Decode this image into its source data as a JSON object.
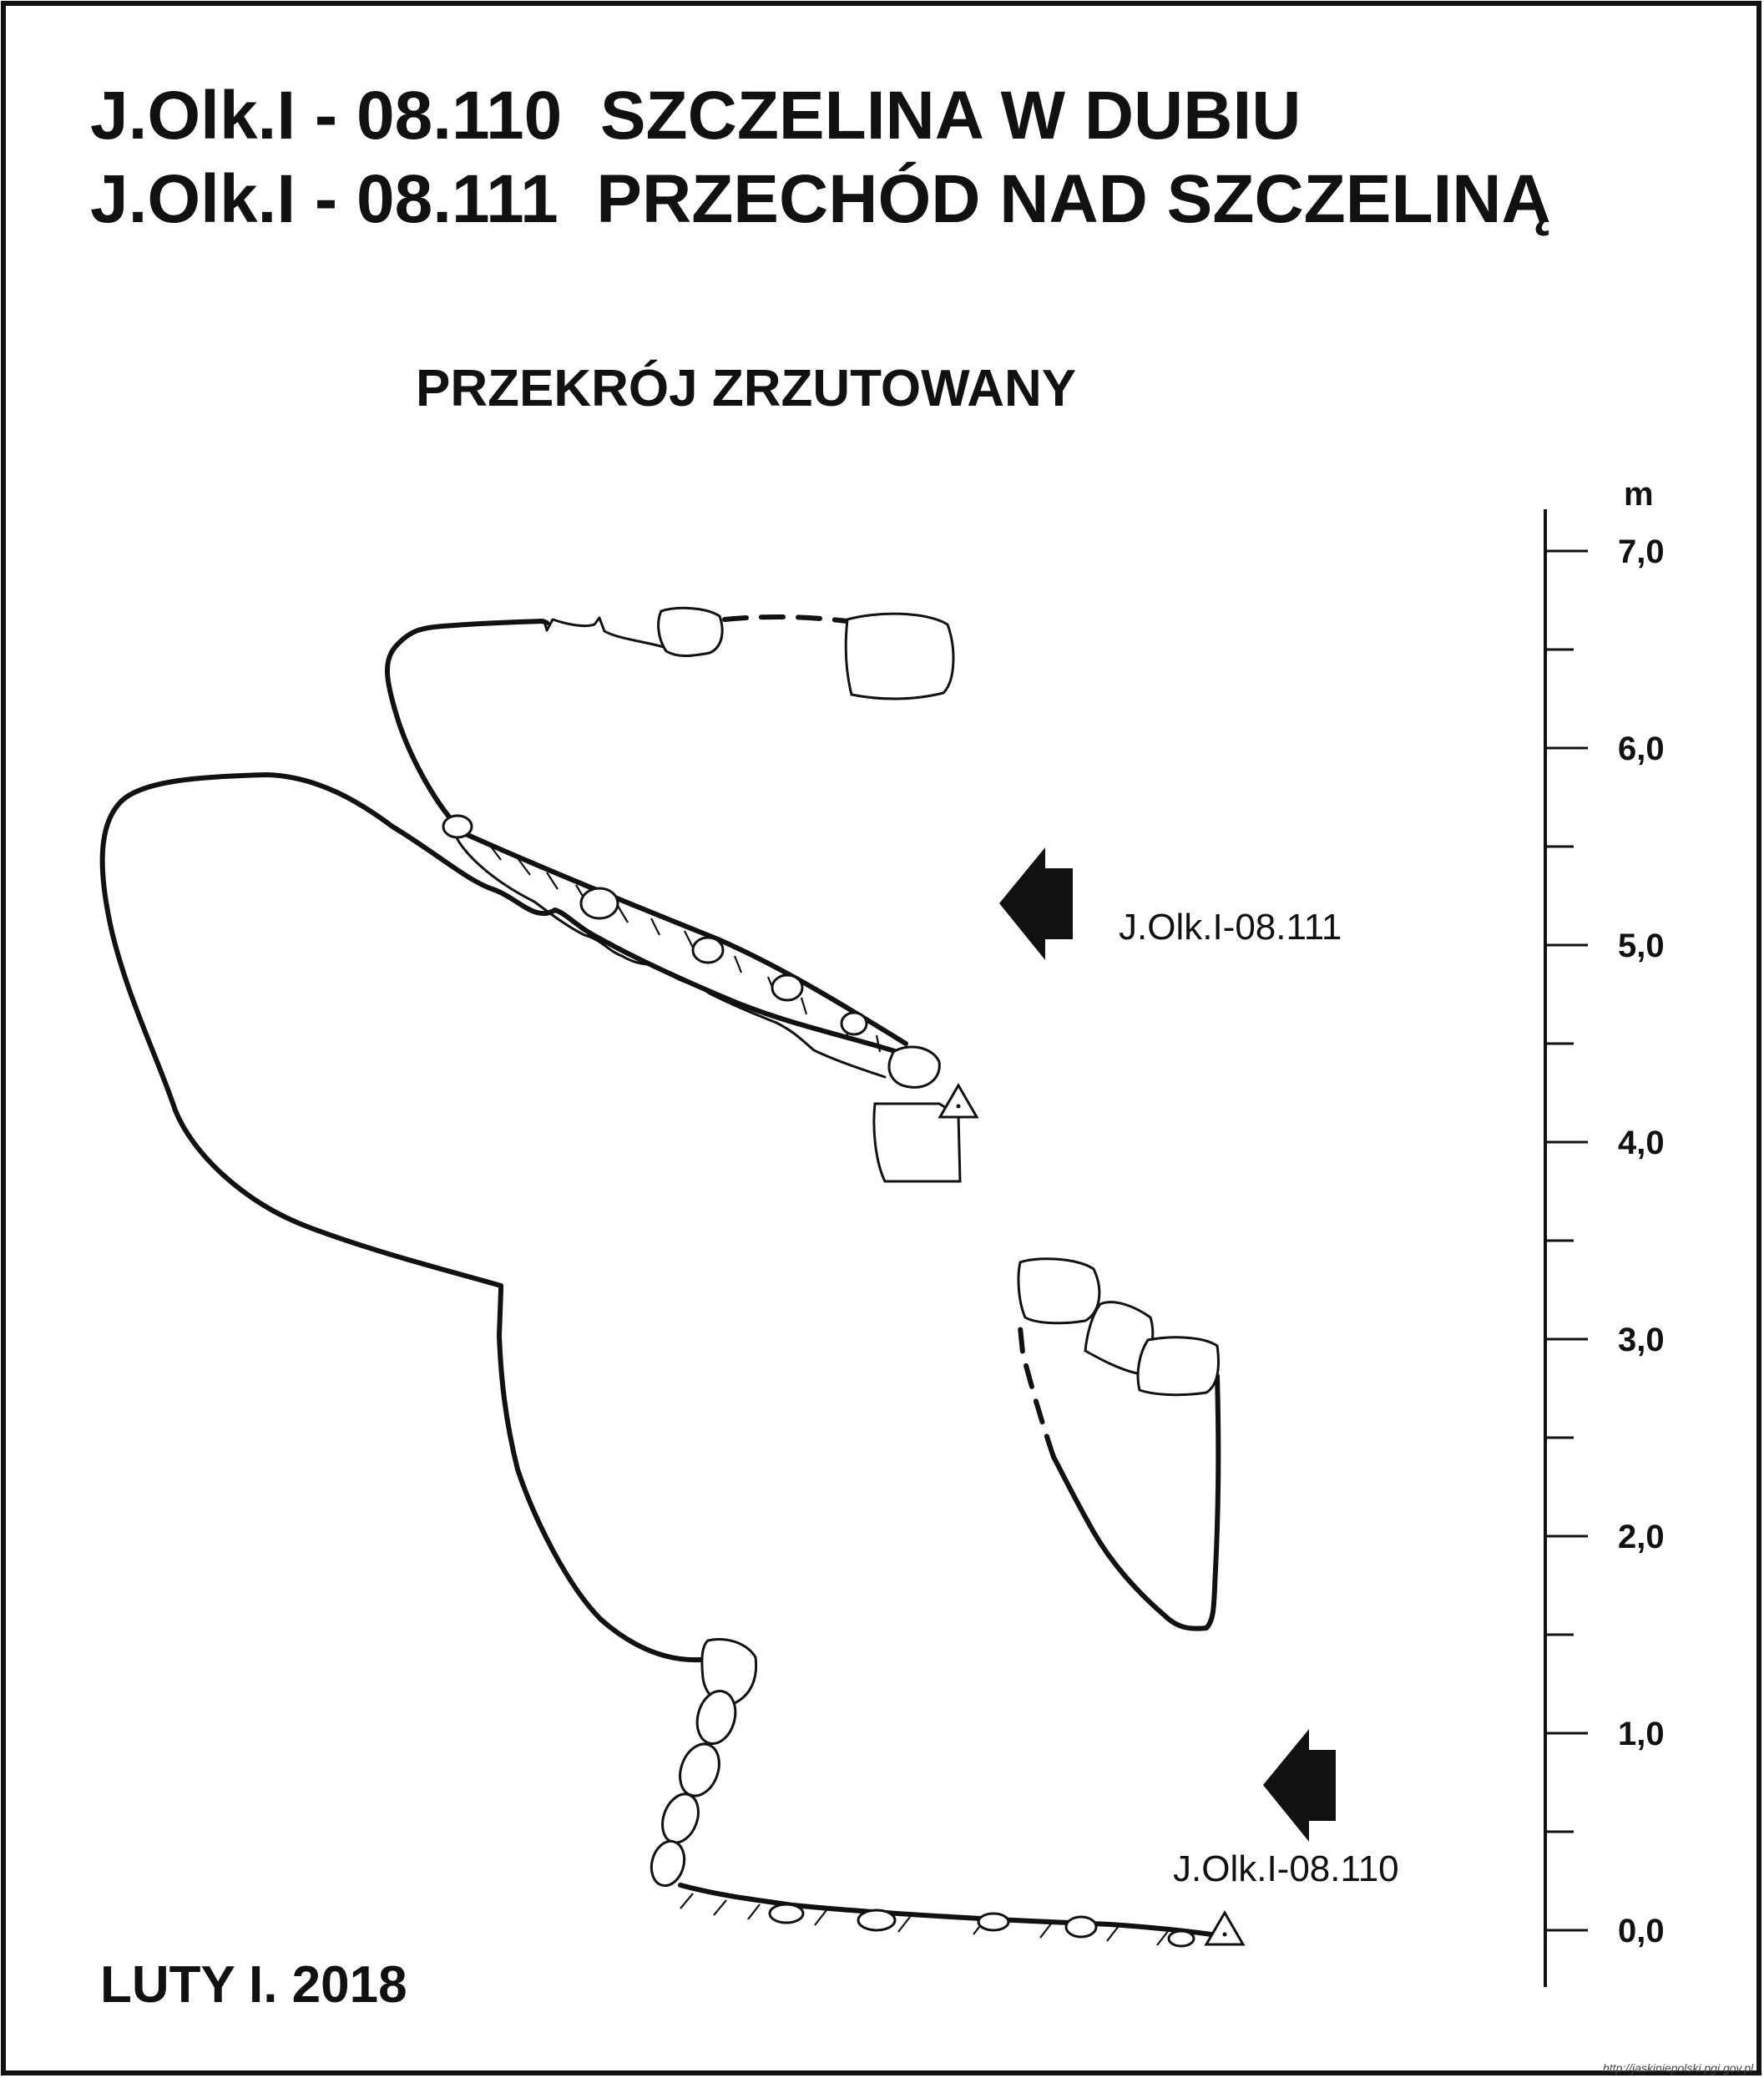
{
  "header": {
    "title_line_1": "J.Olk.I - 08.110  SZCZELINA W DUBIU",
    "title_line_2": "J.Olk.I - 08.111  PRZECHÓD NAD SZCZELINĄ"
  },
  "section_title": "PRZEKRÓJ ZRZUTOWANY",
  "cave_labels": {
    "upper": "J.Olk.I-08.111",
    "lower": "J.Olk.I-08.110"
  },
  "scale": {
    "unit": "m",
    "labels": [
      "7,0",
      "6,0",
      "5,0",
      "4,0",
      "3,0",
      "2,0",
      "1,0",
      "0,0"
    ]
  },
  "footer": {
    "date": "LUTY I. 2018",
    "credit": "http://jaskiniepolski.pgi.gov.pl"
  }
}
